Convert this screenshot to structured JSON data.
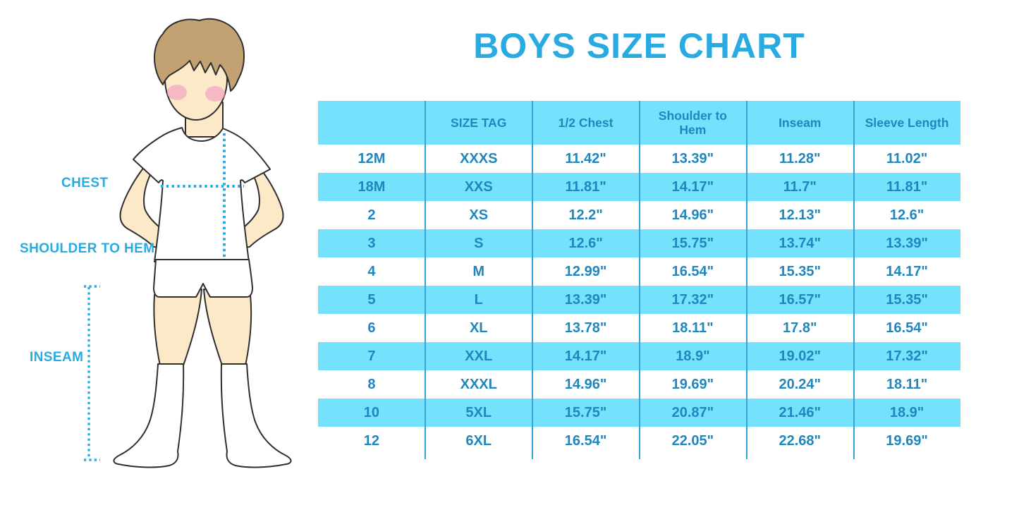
{
  "title": "BOYS SIZE CHART",
  "colors": {
    "accent_blue": "#29ABE2",
    "band_blue": "#74E2FC",
    "table_text_blue": "#1E87BE",
    "separator_blue": "#35A3D6",
    "skin": "#FCE9C8",
    "hair": "#C2A173",
    "blush": "#F2A8C4",
    "outline": "#2F2F2F"
  },
  "figure": {
    "chest_label": "CHEST",
    "shoulder_to_hem_label": "SHOULDER TO HEM",
    "inseam_label": "INSEAM"
  },
  "chart_data": {
    "type": "table",
    "title": "BOYS SIZE CHART",
    "columns": [
      "",
      "SIZE TAG",
      "1/2 Chest",
      "Shoulder to Hem",
      "Inseam",
      "Sleeve Length"
    ],
    "rows": [
      [
        "12M",
        "XXXS",
        "11.42\"",
        "13.39\"",
        "11.28\"",
        "11.02\""
      ],
      [
        "18M",
        "XXS",
        "11.81\"",
        "14.17\"",
        "11.7\"",
        "11.81\""
      ],
      [
        "2",
        "XS",
        "12.2\"",
        "14.96\"",
        "12.13\"",
        "12.6\""
      ],
      [
        "3",
        "S",
        "12.6\"",
        "15.75\"",
        "13.74\"",
        "13.39\""
      ],
      [
        "4",
        "M",
        "12.99\"",
        "16.54\"",
        "15.35\"",
        "14.17\""
      ],
      [
        "5",
        "L",
        "13.39\"",
        "17.32\"",
        "16.57\"",
        "15.35\""
      ],
      [
        "6",
        "XL",
        "13.78\"",
        "18.11\"",
        "17.8\"",
        "16.54\""
      ],
      [
        "7",
        "XXL",
        "14.17\"",
        "18.9\"",
        "19.02\"",
        "17.32\""
      ],
      [
        "8",
        "XXXL",
        "14.96\"",
        "19.69\"",
        "20.24\"",
        "18.11\""
      ],
      [
        "10",
        "5XL",
        "15.75\"",
        "20.87\"",
        "21.46\"",
        "18.9\""
      ],
      [
        "12",
        "6XL",
        "16.54\"",
        "22.05\"",
        "22.68\"",
        "19.69\""
      ]
    ]
  }
}
